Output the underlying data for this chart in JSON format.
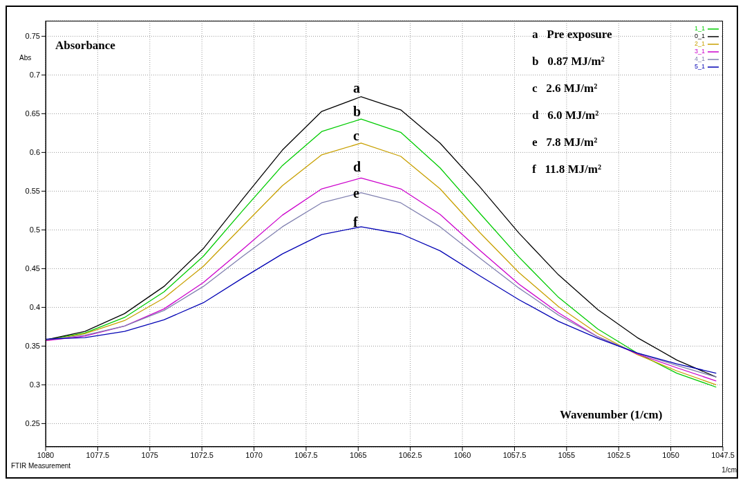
{
  "chart_data": {
    "type": "line",
    "ylabel": "Abs",
    "xlabel": "1/cm",
    "x": [
      1080,
      1078.11,
      1076.21,
      1074.32,
      1072.43,
      1070.54,
      1068.64,
      1066.75,
      1064.86,
      1062.96,
      1061.07,
      1059.18,
      1057.29,
      1055.39,
      1053.5,
      1051.61,
      1049.71,
      1047.82
    ],
    "series": [
      {
        "name": "1_1",
        "color": "#00cc00",
        "values": [
          0.358,
          0.367,
          0.387,
          0.42,
          0.466,
          0.525,
          0.583,
          0.627,
          0.643,
          0.626,
          0.58,
          0.522,
          0.465,
          0.413,
          0.372,
          0.341,
          0.315,
          0.297
        ]
      },
      {
        "name": "0_1",
        "color": "#000000",
        "values": [
          0.358,
          0.369,
          0.392,
          0.427,
          0.476,
          0.54,
          0.603,
          0.653,
          0.672,
          0.655,
          0.612,
          0.556,
          0.496,
          0.442,
          0.397,
          0.361,
          0.332,
          0.31
        ]
      },
      {
        "name": "2_1",
        "color": "#c8a000",
        "values": [
          0.357,
          0.366,
          0.383,
          0.412,
          0.453,
          0.505,
          0.557,
          0.597,
          0.612,
          0.595,
          0.553,
          0.497,
          0.445,
          0.401,
          0.366,
          0.339,
          0.318,
          0.3
        ]
      },
      {
        "name": "3_1",
        "color": "#cc00cc",
        "values": [
          0.357,
          0.363,
          0.376,
          0.398,
          0.432,
          0.475,
          0.519,
          0.553,
          0.567,
          0.553,
          0.52,
          0.474,
          0.43,
          0.393,
          0.362,
          0.34,
          0.322,
          0.305
        ]
      },
      {
        "name": "4_1",
        "color": "#8080b0",
        "values": [
          0.358,
          0.364,
          0.376,
          0.396,
          0.427,
          0.466,
          0.504,
          0.535,
          0.548,
          0.535,
          0.504,
          0.464,
          0.425,
          0.39,
          0.362,
          0.341,
          0.325,
          0.31
        ]
      },
      {
        "name": "5_1",
        "color": "#0000b4",
        "values": [
          0.359,
          0.361,
          0.369,
          0.384,
          0.406,
          0.438,
          0.469,
          0.494,
          0.504,
          0.495,
          0.473,
          0.441,
          0.41,
          0.382,
          0.36,
          0.341,
          0.327,
          0.315
        ]
      }
    ],
    "xlim": [
      1080,
      1047.5
    ],
    "xticks": [
      1080,
      1077.5,
      1075,
      1072.5,
      1070,
      1067.5,
      1065,
      1062.5,
      1060,
      1057.5,
      1055,
      1052.5,
      1050,
      1047.5
    ],
    "ylim": [
      0.22,
      0.77
    ],
    "yticks": [
      0.25,
      0.3,
      0.35,
      0.4,
      0.45,
      0.5,
      0.55,
      0.6,
      0.65,
      0.7,
      0.75
    ],
    "grid": true,
    "legend": "top right",
    "marker": "none",
    "line_style": "solid",
    "annotations": [
      "Absorbance",
      "a   Pre exposure",
      "b   0.87 MJ/m²",
      "c   2.6 MJ/m²",
      "d   6.0 MJ/m²",
      "e   7.8 MJ/m²",
      "f   11.8 MJ/m²",
      "Wavenumber (1/cm)",
      "FTIR Measurement",
      "a",
      "b",
      "c",
      "d",
      "e",
      "f"
    ]
  }
}
